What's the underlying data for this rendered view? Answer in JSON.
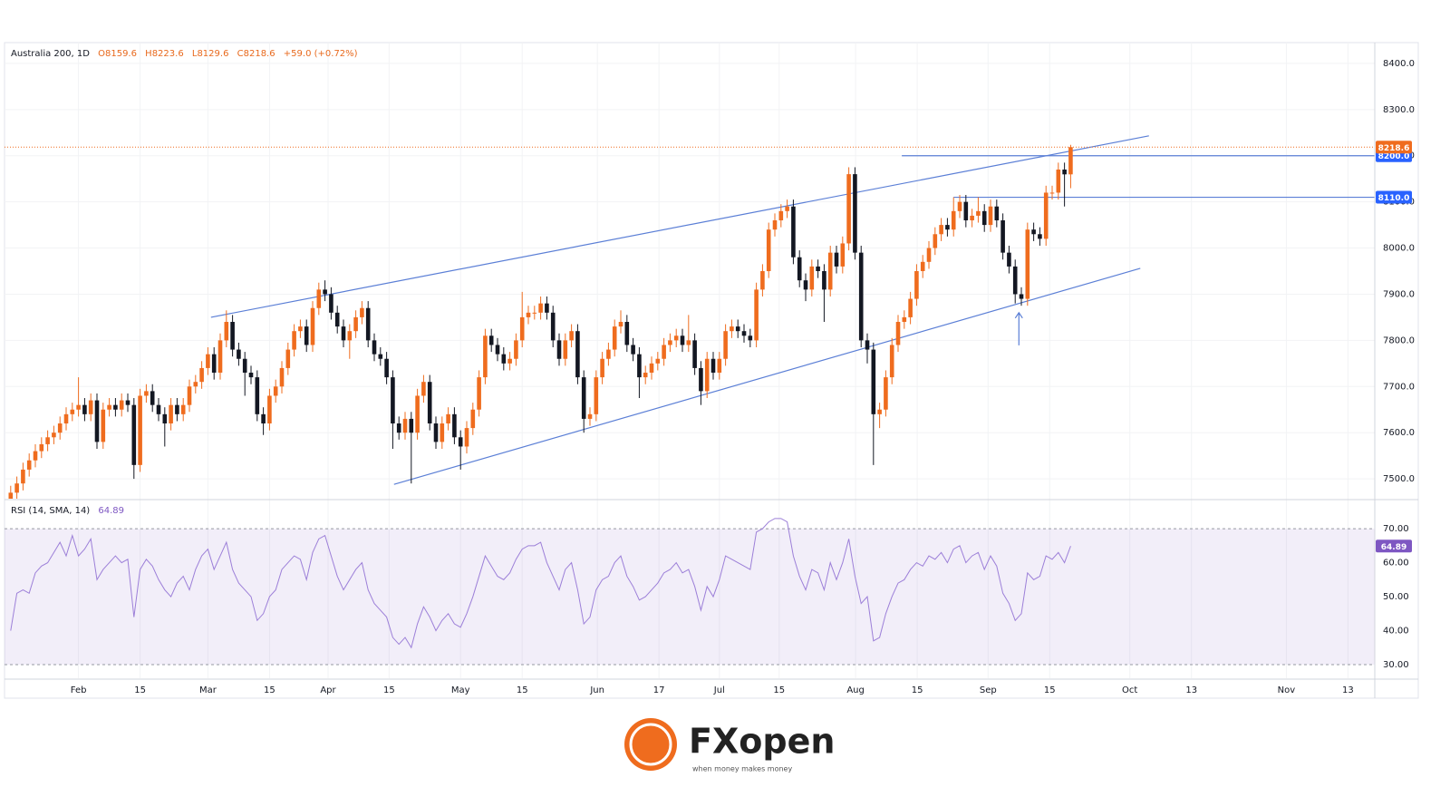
{
  "chart_data": [
    {
      "type": "candlestick",
      "title": "Australia 200, 1D",
      "ohlc_labels": [
        "O8159.6",
        "H8223.6",
        "L8129.6",
        "C8218.6"
      ],
      "change": "+59.0 (+0.72%)",
      "x": [
        1,
        2,
        3,
        4,
        5,
        6,
        7,
        8,
        9,
        10,
        11,
        12,
        13,
        14,
        15,
        16,
        17,
        18,
        19,
        20,
        21,
        22,
        23,
        24,
        25,
        26,
        27,
        28,
        29,
        30,
        31,
        32,
        33,
        34,
        35,
        36,
        37,
        38,
        39,
        40,
        41,
        42,
        43,
        44,
        45,
        46,
        47,
        48,
        49,
        50,
        51,
        52,
        53,
        54,
        55,
        56,
        57,
        58,
        59,
        60,
        61,
        62,
        63,
        64,
        65,
        66,
        67,
        68,
        69,
        70,
        71,
        72,
        73,
        74,
        75,
        76,
        77,
        78,
        79,
        80,
        81,
        82,
        83,
        84,
        85,
        86,
        87,
        88,
        89,
        90,
        91,
        92,
        93,
        94,
        95,
        96,
        97,
        98,
        99,
        100,
        101,
        102,
        103,
        104,
        105,
        106,
        107,
        108,
        109,
        110,
        111,
        112,
        113,
        114,
        115,
        116,
        117,
        118,
        119,
        120,
        121,
        122,
        123,
        124,
        125,
        126,
        127,
        128,
        129,
        130,
        131,
        132,
        133,
        134,
        135,
        136,
        137,
        138,
        139,
        140,
        141,
        142,
        143,
        144,
        145,
        146,
        147,
        148,
        149,
        150,
        151,
        152,
        153,
        154,
        155,
        156,
        157,
        158,
        159,
        160,
        161,
        162,
        163,
        164,
        165,
        166,
        167,
        168,
        169,
        170,
        171,
        172,
        173
      ],
      "open": [
        7440,
        7470,
        7490,
        7520,
        7540,
        7560,
        7575,
        7590,
        7600,
        7620,
        7640,
        7650,
        7660,
        7640,
        7670,
        7580,
        7650,
        7660,
        7650,
        7670,
        7660,
        7530,
        7680,
        7690,
        7660,
        7640,
        7620,
        7660,
        7640,
        7660,
        7700,
        7710,
        7740,
        7770,
        7730,
        7800,
        7840,
        7780,
        7760,
        7730,
        7720,
        7640,
        7620,
        7680,
        7700,
        7740,
        7780,
        7820,
        7830,
        7790,
        7870,
        7910,
        7900,
        7860,
        7830,
        7800,
        7820,
        7850,
        7870,
        7800,
        7770,
        7760,
        7720,
        7620,
        7600,
        7630,
        7600,
        7680,
        7710,
        7620,
        7580,
        7620,
        7640,
        7590,
        7570,
        7610,
        7650,
        7720,
        7810,
        7790,
        7770,
        7750,
        7760,
        7800,
        7850,
        7860,
        7860,
        7880,
        7860,
        7800,
        7760,
        7800,
        7820,
        7720,
        7630,
        7640,
        7720,
        7760,
        7780,
        7830,
        7840,
        7790,
        7770,
        7720,
        7730,
        7750,
        7760,
        7790,
        7800,
        7810,
        7790,
        7800,
        7740,
        7690,
        7760,
        7730,
        7760,
        7820,
        7830,
        7820,
        7810,
        7800,
        7910,
        7950,
        8040,
        8060,
        8080,
        8090,
        7980,
        7930,
        7910,
        7960,
        7950,
        7910,
        7990,
        7960,
        8010,
        8160,
        7990,
        7800,
        7780,
        7640,
        7650,
        7720,
        7790,
        7840,
        7850,
        7890,
        7950,
        7970,
        8000,
        8030,
        8050,
        8040,
        8080,
        8100,
        8060,
        8070,
        8080,
        8050,
        8090,
        8060,
        7990,
        7960,
        7900,
        7890,
        8040,
        8030,
        8020,
        8120,
        8120,
        8170,
        8159.6
      ],
      "high": [
        7485,
        7505,
        7535,
        7555,
        7575,
        7590,
        7605,
        7615,
        7635,
        7655,
        7665,
        7720,
        7675,
        7685,
        7685,
        7665,
        7675,
        7675,
        7685,
        7685,
        7675,
        7695,
        7705,
        7705,
        7675,
        7655,
        7675,
        7675,
        7675,
        7715,
        7725,
        7755,
        7785,
        7785,
        7815,
        7865,
        7855,
        7795,
        7775,
        7745,
        7735,
        7655,
        7695,
        7715,
        7755,
        7795,
        7835,
        7845,
        7845,
        7885,
        7925,
        7930,
        7915,
        7875,
        7845,
        7835,
        7865,
        7885,
        7885,
        7815,
        7785,
        7775,
        7735,
        7635,
        7645,
        7645,
        7695,
        7725,
        7725,
        7635,
        7635,
        7655,
        7655,
        7605,
        7625,
        7665,
        7735,
        7825,
        7825,
        7805,
        7785,
        7775,
        7815,
        7905,
        7875,
        7875,
        7895,
        7895,
        7875,
        7815,
        7815,
        7835,
        7835,
        7735,
        7655,
        7735,
        7775,
        7795,
        7845,
        7865,
        7855,
        7805,
        7785,
        7745,
        7765,
        7775,
        7805,
        7815,
        7825,
        7825,
        7855,
        7815,
        7755,
        7775,
        7775,
        7775,
        7835,
        7845,
        7845,
        7835,
        7825,
        7925,
        7965,
        8055,
        8075,
        8095,
        8105,
        8105,
        7995,
        7945,
        7975,
        7975,
        7965,
        8005,
        8005,
        8025,
        8175,
        8175,
        8005,
        7815,
        7795,
        7665,
        7735,
        7805,
        7855,
        7865,
        7905,
        7965,
        7985,
        8015,
        8045,
        8065,
        8065,
        8110,
        8115,
        8115,
        8085,
        8110,
        8095,
        8105,
        8105,
        8075,
        8005,
        7975,
        7915,
        8055,
        8055,
        8045,
        8135,
        8135,
        8185,
        8185,
        8223.6
      ],
      "low": [
        7425,
        7455,
        7475,
        7505,
        7525,
        7545,
        7560,
        7575,
        7585,
        7605,
        7625,
        7635,
        7625,
        7625,
        7565,
        7565,
        7635,
        7635,
        7635,
        7645,
        7500,
        7515,
        7665,
        7645,
        7625,
        7570,
        7605,
        7625,
        7625,
        7645,
        7685,
        7695,
        7725,
        7715,
        7715,
        7785,
        7765,
        7745,
        7680,
        7705,
        7625,
        7595,
        7605,
        7665,
        7685,
        7725,
        7765,
        7805,
        7775,
        7775,
        7855,
        7885,
        7845,
        7815,
        7785,
        7760,
        7805,
        7835,
        7785,
        7755,
        7745,
        7705,
        7565,
        7585,
        7585,
        7490,
        7585,
        7665,
        7605,
        7565,
        7565,
        7605,
        7575,
        7520,
        7555,
        7595,
        7635,
        7705,
        7775,
        7755,
        7735,
        7735,
        7745,
        7785,
        7835,
        7845,
        7845,
        7845,
        7785,
        7745,
        7745,
        7785,
        7705,
        7600,
        7615,
        7625,
        7705,
        7745,
        7765,
        7815,
        7775,
        7755,
        7675,
        7705,
        7715,
        7735,
        7745,
        7775,
        7785,
        7775,
        7775,
        7725,
        7660,
        7675,
        7715,
        7715,
        7745,
        7805,
        7805,
        7795,
        7785,
        7785,
        7895,
        7935,
        8025,
        8045,
        8065,
        7965,
        7915,
        7885,
        7895,
        7935,
        7840,
        7895,
        7945,
        7945,
        7995,
        7975,
        7785,
        7750,
        7530,
        7610,
        7635,
        7705,
        7775,
        7825,
        7835,
        7875,
        7935,
        7955,
        7985,
        8015,
        8025,
        8025,
        8065,
        8045,
        8045,
        8055,
        8035,
        8035,
        8045,
        7975,
        7945,
        7880,
        7875,
        7875,
        8015,
        8005,
        8005,
        8105,
        8105,
        8090,
        8129.6
      ],
      "close": [
        7470,
        7490,
        7520,
        7540,
        7560,
        7575,
        7590,
        7600,
        7620,
        7640,
        7650,
        7660,
        7640,
        7670,
        7580,
        7650,
        7660,
        7650,
        7670,
        7660,
        7530,
        7680,
        7690,
        7660,
        7640,
        7620,
        7660,
        7640,
        7660,
        7700,
        7710,
        7740,
        7770,
        7730,
        7800,
        7840,
        7780,
        7760,
        7730,
        7720,
        7640,
        7620,
        7680,
        7700,
        7740,
        7780,
        7820,
        7830,
        7790,
        7870,
        7910,
        7900,
        7860,
        7830,
        7800,
        7820,
        7850,
        7870,
        7800,
        7770,
        7760,
        7720,
        7620,
        7600,
        7630,
        7600,
        7680,
        7710,
        7620,
        7580,
        7620,
        7640,
        7590,
        7570,
        7610,
        7650,
        7720,
        7810,
        7790,
        7770,
        7750,
        7760,
        7800,
        7850,
        7860,
        7860,
        7880,
        7860,
        7800,
        7760,
        7800,
        7820,
        7720,
        7630,
        7640,
        7720,
        7760,
        7780,
        7830,
        7840,
        7790,
        7770,
        7720,
        7730,
        7750,
        7760,
        7790,
        7800,
        7810,
        7790,
        7800,
        7740,
        7690,
        7760,
        7730,
        7760,
        7820,
        7830,
        7820,
        7810,
        7800,
        7910,
        7950,
        8040,
        8060,
        8080,
        8090,
        7980,
        7930,
        7910,
        7960,
        7950,
        7910,
        7990,
        7960,
        8010,
        8160,
        7990,
        7800,
        7780,
        7640,
        7650,
        7720,
        7790,
        7840,
        7850,
        7890,
        7950,
        7970,
        8000,
        8030,
        8050,
        8040,
        8080,
        8100,
        8060,
        8070,
        8080,
        8050,
        8090,
        8060,
        7990,
        7960,
        7900,
        7890,
        8040,
        8030,
        8020,
        8120,
        8120,
        8170,
        8159.6,
        8218.6
      ],
      "up_color": "#ef6c1e",
      "down_color": "#131722",
      "xlim": [
        0,
        222.35
      ],
      "ylim": [
        7457,
        8445
      ],
      "yticks": [
        {
          "value": 7500,
          "label": "7500.0"
        },
        {
          "value": 7600,
          "label": "7600.0"
        },
        {
          "value": 7700,
          "label": "7700.0"
        },
        {
          "value": 7800,
          "label": "7800.0"
        },
        {
          "value": 7900,
          "label": "7900.0"
        },
        {
          "value": 8000,
          "label": "8000.0"
        },
        {
          "value": 8100,
          "label": "8100.0"
        },
        {
          "value": 8200,
          "label": "8200.0"
        },
        {
          "value": 8300,
          "label": "8300.0"
        },
        {
          "value": 8400,
          "label": "8400.0"
        }
      ],
      "xticks": [
        {
          "value": 12,
          "label": "Feb"
        },
        {
          "value": 22,
          "label": "15"
        },
        {
          "value": 33,
          "label": "Mar"
        },
        {
          "value": 43,
          "label": "15"
        },
        {
          "value": 52.5,
          "label": "Apr"
        },
        {
          "value": 62.4,
          "label": "15"
        },
        {
          "value": 74,
          "label": "May"
        },
        {
          "value": 84,
          "label": "15"
        },
        {
          "value": 96.2,
          "label": "Jun"
        },
        {
          "value": 106.2,
          "label": "17"
        },
        {
          "value": 116,
          "label": "Jul"
        },
        {
          "value": 125.7,
          "label": "15"
        },
        {
          "value": 138.1,
          "label": "Aug"
        },
        {
          "value": 148.1,
          "label": "15"
        },
        {
          "value": 159.6,
          "label": "Sep"
        },
        {
          "value": 169.6,
          "label": "15"
        },
        {
          "value": 182.6,
          "label": "Oct"
        },
        {
          "value": 192.6,
          "label": "13"
        },
        {
          "value": 208,
          "label": "Nov"
        },
        {
          "value": 218,
          "label": "13"
        }
      ],
      "grid": true,
      "line_color": "#5b7fd6",
      "trend_lines": [
        {
          "x": [
            33.5,
            185.7
          ],
          "y": [
            7850,
            8243
          ]
        },
        {
          "x": [
            63.2,
            184.3
          ],
          "y": [
            7488,
            7956
          ]
        }
      ],
      "levels": [
        {
          "value": 8200,
          "label": "8200.0",
          "from": 145.6
        },
        {
          "value": 8110,
          "label": "8110.0",
          "from": 154
        }
      ],
      "arrow": {
        "x": 164.6,
        "y": 7860
      }
    },
    {
      "type": "line",
      "title": "RSI (14, SMA, 14)",
      "color": "#9c7fd8",
      "values": [
        40,
        51,
        52,
        51,
        57,
        59,
        60,
        63,
        66,
        62,
        68,
        62,
        64,
        67,
        55,
        58,
        60,
        62,
        60,
        61,
        44,
        58,
        61,
        59,
        55,
        52,
        50,
        54,
        56,
        52,
        58,
        62,
        64,
        58,
        62,
        66,
        58,
        54,
        52,
        50,
        43,
        45,
        50,
        52,
        58,
        60,
        62,
        61,
        55,
        63,
        67,
        68,
        62,
        56,
        52,
        55,
        58,
        60,
        52,
        48,
        46,
        44,
        38,
        36,
        38,
        35,
        42,
        47,
        44,
        40,
        43,
        45,
        42,
        41,
        45,
        50,
        56,
        62,
        59,
        56,
        55,
        57,
        61,
        64,
        65,
        65,
        66,
        60,
        56,
        52,
        58,
        60,
        52,
        42,
        44,
        52,
        55,
        56,
        60,
        62,
        56,
        53,
        49,
        50,
        52,
        54,
        57,
        58,
        60,
        57,
        58,
        53,
        46,
        53,
        50,
        55,
        62,
        61,
        60,
        59,
        58,
        69,
        70,
        72,
        73,
        73,
        72,
        62,
        56,
        52,
        58,
        57,
        52,
        60,
        55,
        60,
        67,
        56,
        48,
        50,
        37,
        38,
        45,
        50,
        54,
        55,
        58,
        60,
        59,
        62,
        61,
        63,
        60,
        64,
        65,
        60,
        62,
        63,
        58,
        62,
        59,
        51,
        48,
        43,
        45,
        57,
        55,
        56,
        62,
        61,
        63,
        60,
        64.89
      ],
      "ylim": [
        26,
        78.3
      ],
      "band": [
        30,
        70
      ],
      "yticks": [
        {
          "value": 30,
          "label": "30.00"
        },
        {
          "value": 40,
          "label": "40.00"
        },
        {
          "value": 50,
          "label": "50.00"
        },
        {
          "value": 60,
          "label": "60.00"
        },
        {
          "value": 70,
          "label": "70.00"
        }
      ]
    }
  ],
  "footer": {
    "brand": "FXopen",
    "tagline": "when money makes money"
  }
}
